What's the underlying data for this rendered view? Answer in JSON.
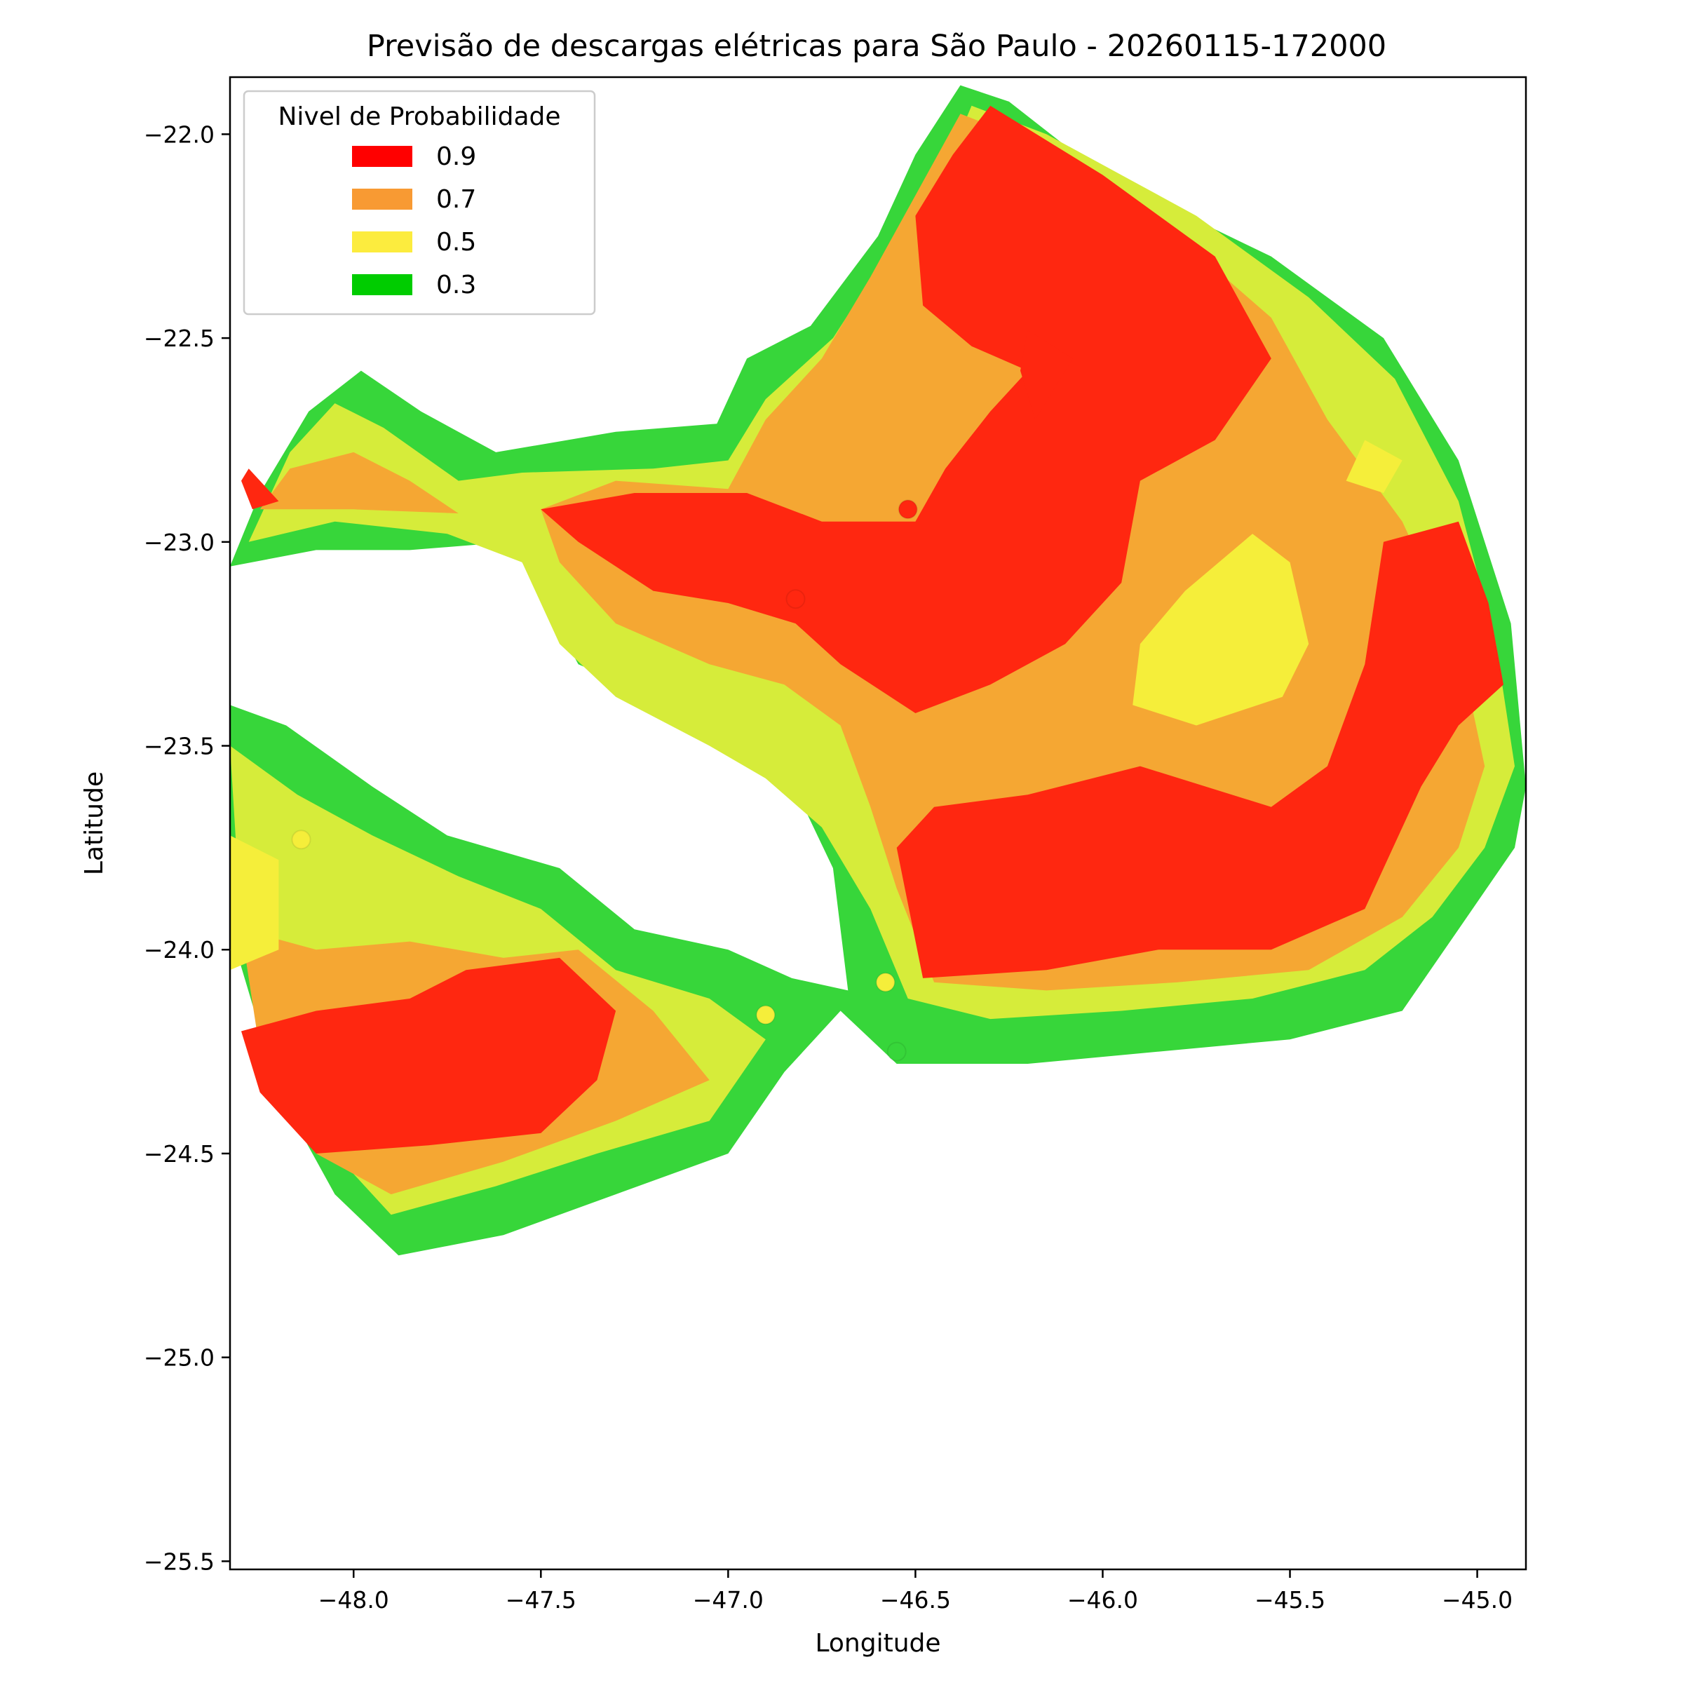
{
  "chart_data": {
    "type": "heatmap",
    "title": "Previsão de descargas elétricas para São Paulo - 20260115-172000",
    "xlabel": "Longitude",
    "ylabel": "Latitude",
    "xlim": [
      -48.33,
      -44.87
    ],
    "ylim": [
      -25.52,
      -21.86
    ],
    "x_ticks": [
      -48.0,
      -47.5,
      -47.0,
      -46.5,
      -46.0,
      -45.5,
      -45.0
    ],
    "x_tick_labels": [
      "−48.0",
      "−47.5",
      "−47.0",
      "−46.5",
      "−46.0",
      "−45.5",
      "−45.0"
    ],
    "y_ticks": [
      -22.0,
      -22.5,
      -23.0,
      -23.5,
      -24.0,
      -24.5,
      -25.0,
      -25.5
    ],
    "y_tick_labels": [
      "−22.0",
      "−22.5",
      "−23.0",
      "−23.5",
      "−24.0",
      "−24.5",
      "−25.0",
      "−25.5"
    ],
    "grid": false,
    "legend": {
      "title": "Nivel de Probabilidade",
      "placement": "upper-left",
      "entries": [
        {
          "label": "0.9",
          "color": "#ff0000"
        },
        {
          "label": "0.7",
          "color": "#f89a33"
        },
        {
          "label": "0.5",
          "color": "#fcec3e"
        },
        {
          "label": "0.3",
          "color": "#00cc00"
        }
      ]
    },
    "fill_colors": {
      "0.9": "#ff2710",
      "0.7": "#f5a733",
      "0.6": "#d6ec3a",
      "0.5": "#f5ee3a",
      "0.3": "#37d63a"
    },
    "regions": [
      {
        "level": 0.3,
        "polygon": [
          [
            -48.33,
            -23.06
          ],
          [
            -48.25,
            -22.88
          ],
          [
            -48.12,
            -22.68
          ],
          [
            -47.98,
            -22.58
          ],
          [
            -47.82,
            -22.68
          ],
          [
            -47.62,
            -22.78
          ],
          [
            -47.3,
            -22.73
          ],
          [
            -47.03,
            -22.71
          ],
          [
            -46.95,
            -22.55
          ],
          [
            -46.78,
            -22.47
          ],
          [
            -46.6,
            -22.25
          ],
          [
            -46.5,
            -22.05
          ],
          [
            -46.38,
            -21.88
          ],
          [
            -46.25,
            -21.92
          ],
          [
            -46.0,
            -22.1
          ],
          [
            -45.55,
            -22.3
          ],
          [
            -45.25,
            -22.5
          ],
          [
            -45.05,
            -22.8
          ],
          [
            -44.91,
            -23.2
          ],
          [
            -44.87,
            -23.6
          ],
          [
            -44.9,
            -23.75
          ],
          [
            -45.05,
            -23.95
          ],
          [
            -45.2,
            -24.15
          ],
          [
            -45.5,
            -24.22
          ],
          [
            -45.85,
            -24.25
          ],
          [
            -46.2,
            -24.28
          ],
          [
            -46.55,
            -24.28
          ],
          [
            -46.7,
            -24.15
          ],
          [
            -46.85,
            -24.3
          ],
          [
            -47.0,
            -24.5
          ],
          [
            -47.3,
            -24.6
          ],
          [
            -47.6,
            -24.7
          ],
          [
            -47.88,
            -24.75
          ],
          [
            -48.05,
            -24.6
          ],
          [
            -48.2,
            -24.35
          ],
          [
            -48.33,
            -23.95
          ],
          [
            -48.33,
            -23.4
          ],
          [
            -48.18,
            -23.45
          ],
          [
            -47.95,
            -23.6
          ],
          [
            -47.75,
            -23.72
          ],
          [
            -47.45,
            -23.8
          ],
          [
            -47.25,
            -23.95
          ],
          [
            -47.0,
            -24.0
          ],
          [
            -46.83,
            -24.07
          ],
          [
            -46.68,
            -24.1
          ],
          [
            -46.72,
            -23.8
          ],
          [
            -46.85,
            -23.55
          ],
          [
            -47.1,
            -23.42
          ],
          [
            -47.4,
            -23.3
          ],
          [
            -47.58,
            -23.0
          ],
          [
            -47.85,
            -23.02
          ],
          [
            -48.1,
            -23.02
          ],
          [
            -48.33,
            -23.06
          ]
        ]
      },
      {
        "level": 0.6,
        "polygon": [
          [
            -48.28,
            -23.0
          ],
          [
            -48.17,
            -22.78
          ],
          [
            -48.05,
            -22.66
          ],
          [
            -47.92,
            -22.72
          ],
          [
            -47.72,
            -22.85
          ],
          [
            -47.55,
            -22.83
          ],
          [
            -47.2,
            -22.82
          ],
          [
            -47.0,
            -22.8
          ],
          [
            -46.9,
            -22.65
          ],
          [
            -46.72,
            -22.5
          ],
          [
            -46.58,
            -22.3
          ],
          [
            -46.45,
            -22.15
          ],
          [
            -46.35,
            -21.93
          ],
          [
            -46.15,
            -22.0
          ],
          [
            -45.75,
            -22.2
          ],
          [
            -45.45,
            -22.4
          ],
          [
            -45.22,
            -22.6
          ],
          [
            -45.05,
            -22.9
          ],
          [
            -44.95,
            -23.25
          ],
          [
            -44.9,
            -23.55
          ],
          [
            -44.98,
            -23.75
          ],
          [
            -45.12,
            -23.92
          ],
          [
            -45.3,
            -24.05
          ],
          [
            -45.6,
            -24.12
          ],
          [
            -45.95,
            -24.15
          ],
          [
            -46.3,
            -24.17
          ],
          [
            -46.52,
            -24.12
          ],
          [
            -46.62,
            -23.9
          ],
          [
            -46.75,
            -23.7
          ],
          [
            -46.9,
            -23.58
          ],
          [
            -47.05,
            -23.5
          ],
          [
            -47.3,
            -23.38
          ],
          [
            -47.45,
            -23.25
          ],
          [
            -47.55,
            -23.05
          ],
          [
            -47.75,
            -22.98
          ],
          [
            -48.05,
            -22.95
          ],
          [
            -48.28,
            -23.0
          ]
        ]
      },
      {
        "level": 0.6,
        "polygon": [
          [
            -48.33,
            -23.5
          ],
          [
            -48.15,
            -23.62
          ],
          [
            -47.95,
            -23.72
          ],
          [
            -47.72,
            -23.82
          ],
          [
            -47.5,
            -23.9
          ],
          [
            -47.3,
            -24.05
          ],
          [
            -47.05,
            -24.12
          ],
          [
            -46.9,
            -24.22
          ],
          [
            -47.05,
            -24.42
          ],
          [
            -47.35,
            -24.5
          ],
          [
            -47.62,
            -24.58
          ],
          [
            -47.9,
            -24.65
          ],
          [
            -48.05,
            -24.5
          ],
          [
            -48.2,
            -24.25
          ],
          [
            -48.3,
            -23.95
          ],
          [
            -48.33,
            -23.5
          ]
        ]
      },
      {
        "level": 0.7,
        "polygon": [
          [
            -48.25,
            -22.92
          ],
          [
            -48.17,
            -22.82
          ],
          [
            -48.0,
            -22.78
          ],
          [
            -47.85,
            -22.85
          ],
          [
            -47.72,
            -22.93
          ],
          [
            -48.0,
            -22.92
          ],
          [
            -48.25,
            -22.92
          ]
        ]
      },
      {
        "level": 0.7,
        "polygon": [
          [
            -47.5,
            -22.92
          ],
          [
            -47.3,
            -22.85
          ],
          [
            -47.0,
            -22.87
          ],
          [
            -46.9,
            -22.7
          ],
          [
            -46.75,
            -22.55
          ],
          [
            -46.62,
            -22.35
          ],
          [
            -46.5,
            -22.15
          ],
          [
            -46.38,
            -21.95
          ],
          [
            -46.1,
            -22.05
          ],
          [
            -45.8,
            -22.25
          ],
          [
            -45.55,
            -22.45
          ],
          [
            -45.4,
            -22.7
          ],
          [
            -45.2,
            -22.95
          ],
          [
            -45.05,
            -23.25
          ],
          [
            -44.98,
            -23.55
          ],
          [
            -45.05,
            -23.75
          ],
          [
            -45.2,
            -23.92
          ],
          [
            -45.45,
            -24.05
          ],
          [
            -45.8,
            -24.08
          ],
          [
            -46.15,
            -24.1
          ],
          [
            -46.45,
            -24.08
          ],
          [
            -46.55,
            -23.85
          ],
          [
            -46.62,
            -23.65
          ],
          [
            -46.7,
            -23.45
          ],
          [
            -46.85,
            -23.35
          ],
          [
            -47.05,
            -23.3
          ],
          [
            -47.3,
            -23.2
          ],
          [
            -47.45,
            -23.05
          ],
          [
            -47.5,
            -22.92
          ]
        ]
      },
      {
        "level": 0.7,
        "polygon": [
          [
            -48.3,
            -23.95
          ],
          [
            -48.1,
            -24.0
          ],
          [
            -47.85,
            -23.98
          ],
          [
            -47.6,
            -24.02
          ],
          [
            -47.4,
            -24.0
          ],
          [
            -47.2,
            -24.15
          ],
          [
            -47.05,
            -24.32
          ],
          [
            -47.3,
            -24.42
          ],
          [
            -47.6,
            -24.52
          ],
          [
            -47.9,
            -24.6
          ],
          [
            -48.1,
            -24.5
          ],
          [
            -48.25,
            -24.25
          ],
          [
            -48.3,
            -23.95
          ]
        ]
      },
      {
        "level": 0.5,
        "polygon": [
          [
            -45.6,
            -22.98
          ],
          [
            -45.5,
            -23.05
          ],
          [
            -45.45,
            -23.25
          ],
          [
            -45.52,
            -23.38
          ],
          [
            -45.75,
            -23.45
          ],
          [
            -45.92,
            -23.4
          ],
          [
            -45.9,
            -23.25
          ],
          [
            -45.78,
            -23.12
          ],
          [
            -45.6,
            -22.98
          ]
        ]
      },
      {
        "level": 0.5,
        "polygon": [
          [
            -45.3,
            -22.75
          ],
          [
            -45.2,
            -22.8
          ],
          [
            -45.25,
            -22.88
          ],
          [
            -45.35,
            -22.85
          ],
          [
            -45.3,
            -22.75
          ]
        ]
      },
      {
        "level": 0.5,
        "polygon": [
          [
            -48.33,
            -23.72
          ],
          [
            -48.2,
            -23.78
          ],
          [
            -48.2,
            -24.0
          ],
          [
            -48.33,
            -24.05
          ],
          [
            -48.33,
            -23.72
          ]
        ]
      },
      {
        "level": 0.9,
        "polygon": [
          [
            -46.3,
            -21.93
          ],
          [
            -46.0,
            -22.1
          ],
          [
            -45.7,
            -22.3
          ],
          [
            -45.55,
            -22.55
          ],
          [
            -45.7,
            -22.75
          ],
          [
            -45.9,
            -22.85
          ],
          [
            -45.95,
            -23.1
          ],
          [
            -46.1,
            -23.25
          ],
          [
            -46.3,
            -23.35
          ],
          [
            -46.5,
            -23.42
          ],
          [
            -46.7,
            -23.3
          ],
          [
            -46.82,
            -23.2
          ],
          [
            -47.0,
            -23.15
          ],
          [
            -47.2,
            -23.12
          ],
          [
            -47.4,
            -23.0
          ],
          [
            -47.5,
            -22.92
          ],
          [
            -47.25,
            -22.88
          ],
          [
            -46.95,
            -22.88
          ],
          [
            -46.75,
            -22.95
          ],
          [
            -46.5,
            -22.95
          ],
          [
            -46.42,
            -22.82
          ],
          [
            -46.3,
            -22.68
          ],
          [
            -46.2,
            -22.58
          ],
          [
            -46.35,
            -22.52
          ],
          [
            -46.48,
            -22.42
          ],
          [
            -46.5,
            -22.2
          ],
          [
            -46.4,
            -22.05
          ],
          [
            -46.3,
            -21.93
          ]
        ]
      },
      {
        "level": 0.9,
        "polygon": [
          [
            -46.2,
            -22.48
          ],
          [
            -46.08,
            -22.55
          ],
          [
            -46.18,
            -22.7
          ],
          [
            -46.22,
            -22.58
          ],
          [
            -46.2,
            -22.48
          ]
        ]
      },
      {
        "level": 0.9,
        "polygon": [
          [
            -45.05,
            -22.95
          ],
          [
            -45.25,
            -23.0
          ],
          [
            -45.3,
            -23.3
          ],
          [
            -45.4,
            -23.55
          ],
          [
            -45.55,
            -23.65
          ],
          [
            -45.9,
            -23.55
          ],
          [
            -46.2,
            -23.62
          ],
          [
            -46.45,
            -23.65
          ],
          [
            -46.55,
            -23.75
          ],
          [
            -46.48,
            -24.07
          ],
          [
            -46.15,
            -24.05
          ],
          [
            -45.85,
            -24.0
          ],
          [
            -45.55,
            -24.0
          ],
          [
            -45.3,
            -23.9
          ],
          [
            -45.15,
            -23.6
          ],
          [
            -45.05,
            -23.45
          ],
          [
            -44.93,
            -23.35
          ],
          [
            -44.97,
            -23.15
          ],
          [
            -45.05,
            -22.95
          ]
        ]
      },
      {
        "level": 0.9,
        "polygon": [
          [
            -48.28,
            -22.82
          ],
          [
            -48.2,
            -22.9
          ],
          [
            -48.27,
            -22.92
          ],
          [
            -48.3,
            -22.85
          ],
          [
            -48.28,
            -22.82
          ]
        ]
      },
      {
        "level": 0.9,
        "polygon": [
          [
            -47.7,
            -24.05
          ],
          [
            -47.45,
            -24.02
          ],
          [
            -47.3,
            -24.15
          ],
          [
            -47.35,
            -24.32
          ],
          [
            -47.5,
            -24.45
          ],
          [
            -47.8,
            -24.48
          ],
          [
            -48.1,
            -24.5
          ],
          [
            -48.25,
            -24.35
          ],
          [
            -48.3,
            -24.2
          ],
          [
            -48.1,
            -24.15
          ],
          [
            -47.85,
            -24.12
          ],
          [
            -47.7,
            -24.05
          ]
        ]
      }
    ],
    "points": [
      {
        "x": -46.52,
        "y": -22.92,
        "level": 0.9
      },
      {
        "x": -46.82,
        "y": -23.14,
        "level": 0.9
      },
      {
        "x": -48.14,
        "y": -23.73,
        "level": 0.5
      },
      {
        "x": -46.9,
        "y": -24.16,
        "level": 0.5
      },
      {
        "x": -46.58,
        "y": -24.08,
        "level": 0.5
      },
      {
        "x": -46.55,
        "y": -24.25,
        "level": 0.3
      }
    ]
  }
}
